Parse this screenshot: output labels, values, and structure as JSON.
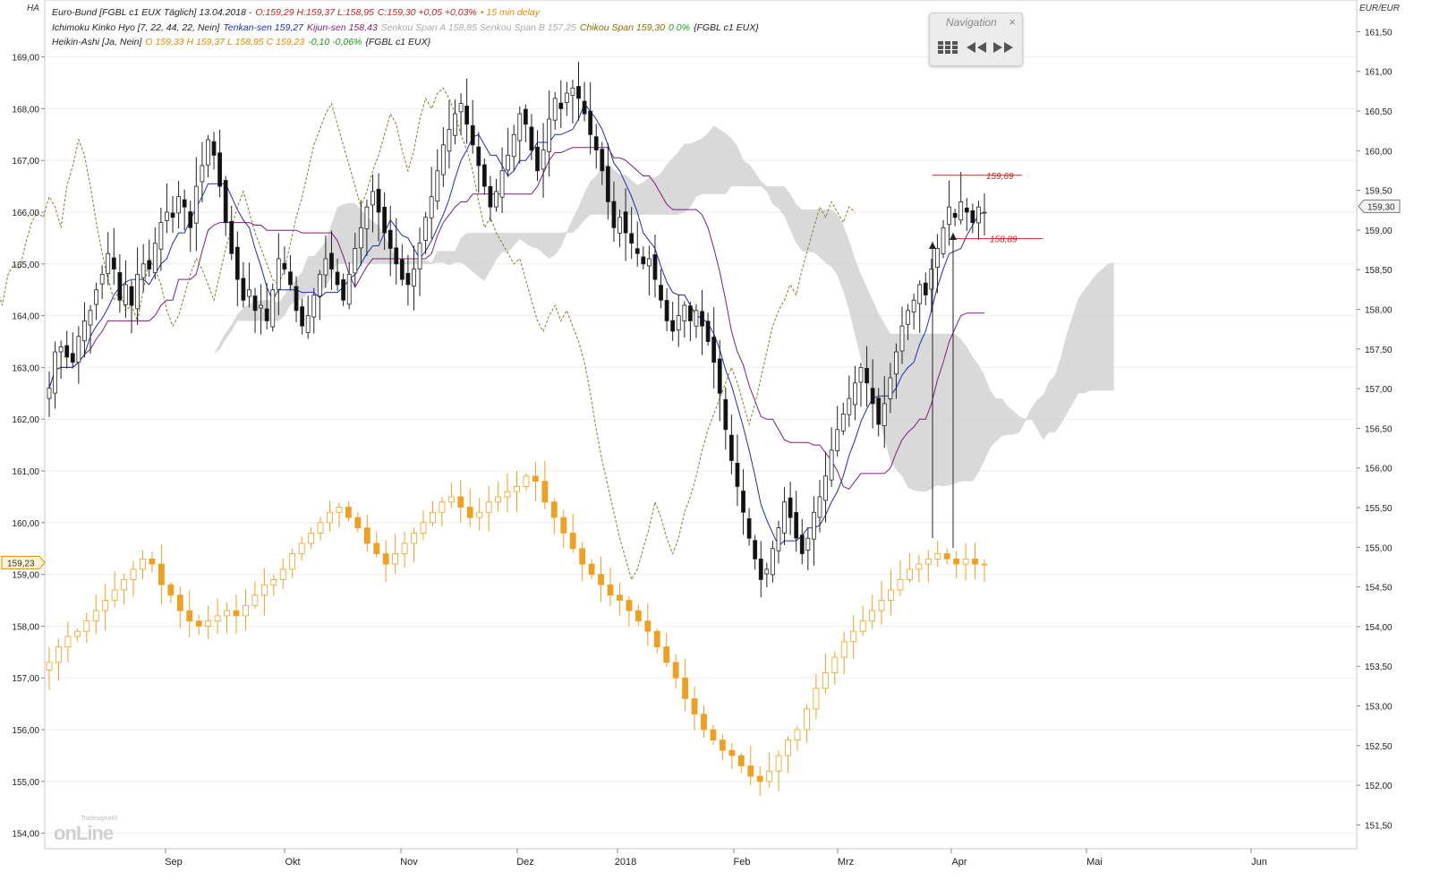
{
  "chart_data": {
    "type": "candlestick",
    "corner_label": "HA",
    "currency_label": "EUR/EUR",
    "legend": {
      "line1": {
        "prefix": "Euro-Bund [FGBL c1 EUX Täglich] 13.04.2018 -",
        "ohlc": "O:159,29 H:159,37 L:158,95",
        "change": "C:159,30 +0,05 +0,03%",
        "delay": "• 15 min delay"
      },
      "line2": {
        "prefix": "Ichimoku Kinko Hyo [7, 22, 44, 22, Nein]",
        "tenkan": "Tenkan-sen 159,27",
        "kijun": "Kijun-sen 158,43",
        "senkou": "Senkou Span A 158,85 Senkou Span B 157,25",
        "chikou": "Chikou Span 159,30",
        "chikou_change": "0 0%",
        "suffix": "{FGBL c1 EUX}"
      },
      "line3": {
        "prefix": "Heikin-Ashi [Ja, Nein]",
        "values": "O 159,33 H 159,37 L 158,95 C 159,23",
        "change": "-0,10 -0,06%",
        "suffix": "{FGBL c1 EUX}"
      }
    },
    "x_tick_labels": [
      "Sep",
      "Okt",
      "Nov",
      "Dez",
      "2018",
      "Feb",
      "Mrz",
      "Apr",
      "Mai",
      "Jun"
    ],
    "left_axis": {
      "ticks": [
        "154,00",
        "155,00",
        "156,00",
        "157,00",
        "158,00",
        "159,00",
        "160,00",
        "161,00",
        "162,00",
        "163,00",
        "164,00",
        "165,00",
        "166,00",
        "167,00",
        "168,00",
        "169,00"
      ],
      "range": [
        153.7,
        170.1
      ]
    },
    "right_axis": {
      "ticks": [
        "151,50",
        "152,00",
        "152,50",
        "153,00",
        "153,50",
        "154,00",
        "154,50",
        "155,00",
        "155,50",
        "156,00",
        "156,50",
        "157,00",
        "157,50",
        "158,00",
        "158,50",
        "159,00",
        "159,50",
        "160,00",
        "160,50",
        "161,00",
        "161,50"
      ],
      "range": [
        151.2,
        161.9
      ]
    },
    "last_price_labels": {
      "left": "159,23",
      "right": "159,30"
    },
    "annotations": [
      {
        "label": "159,69",
        "value": 159.69,
        "color": "#cc2222"
      },
      {
        "label": "158,89",
        "value": 158.89,
        "color": "#cc2222"
      }
    ],
    "heikin_ashi_range": {
      "low": 154.65,
      "high": 160.65,
      "last": 159.23
    },
    "ohlc_close": [
      162.6,
      163.3,
      163.4,
      163.2,
      163.1,
      163.6,
      163.9,
      164.1,
      164.5,
      164.8,
      165.2,
      164.9,
      164.3,
      164.6,
      164.2,
      164.8,
      165.0,
      164.9,
      165.4,
      165.8,
      166.0,
      165.9,
      166.3,
      166.1,
      165.7,
      166.5,
      166.9,
      167.4,
      167.1,
      166.5,
      165.8,
      165.2,
      164.7,
      164.3,
      164.5,
      164.1,
      164.2,
      163.9,
      164.5,
      165.1,
      164.9,
      164.6,
      164.1,
      163.8,
      164.0,
      164.4,
      164.8,
      165.1,
      164.9,
      164.6,
      164.3,
      164.8,
      165.3,
      165.7,
      166.1,
      166.4,
      166.0,
      165.6,
      165.3,
      165.0,
      164.7,
      164.6,
      164.9,
      165.4,
      165.9,
      166.3,
      166.8,
      167.3,
      167.6,
      167.9,
      168.1,
      167.7,
      167.3,
      166.9,
      166.5,
      166.1,
      166.4,
      166.8,
      167.1,
      167.5,
      167.9,
      167.7,
      167.2,
      166.8,
      167.2,
      167.8,
      168.2,
      168.0,
      168.3,
      168.4,
      168.2,
      167.9,
      167.5,
      167.2,
      166.8,
      166.2,
      165.7,
      165.9,
      165.6,
      165.4,
      165.2,
      165.0,
      165.1,
      164.7,
      164.3,
      163.9,
      163.7,
      164.0,
      164.2,
      163.9,
      164.1,
      163.8,
      163.5,
      163.1,
      162.5,
      161.8,
      161.2,
      160.7,
      160.2,
      159.7,
      159.3,
      158.9,
      159.1,
      159.5,
      159.9,
      160.4,
      160.1,
      159.7,
      159.4,
      159.7,
      160.2,
      160.5,
      160.9,
      161.4,
      161.8,
      162.1,
      162.4,
      162.7,
      163.0,
      162.7,
      162.3,
      161.9,
      162.3,
      162.8,
      163.3,
      163.8,
      164.1,
      164.3,
      164.6,
      164.4,
      164.9,
      165.3,
      165.7,
      166.1,
      165.9,
      166.2,
      166.0,
      165.8,
      166.1,
      166.0
    ],
    "heikin_ashi_close": [
      157.3,
      157.6,
      157.8,
      157.9,
      158.1,
      158.3,
      158.5,
      158.7,
      158.9,
      159.1,
      159.3,
      159.2,
      158.8,
      158.6,
      158.3,
      158.1,
      158.0,
      158.1,
      158.2,
      158.3,
      158.2,
      158.4,
      158.6,
      158.8,
      158.9,
      159.1,
      159.4,
      159.6,
      159.8,
      160.0,
      160.2,
      160.3,
      160.1,
      159.9,
      159.6,
      159.4,
      159.2,
      159.4,
      159.6,
      159.8,
      160.0,
      160.2,
      160.4,
      160.5,
      160.3,
      160.1,
      160.2,
      160.4,
      160.5,
      160.6,
      160.7,
      160.9,
      160.8,
      160.4,
      160.1,
      159.8,
      159.5,
      159.2,
      159.0,
      158.8,
      158.6,
      158.5,
      158.3,
      158.1,
      157.9,
      157.6,
      157.3,
      157.0,
      156.6,
      156.3,
      156.0,
      155.8,
      155.6,
      155.5,
      155.3,
      155.1,
      155.0,
      155.2,
      155.5,
      155.8,
      156.0,
      156.4,
      156.8,
      157.1,
      157.4,
      157.7,
      157.9,
      158.1,
      158.3,
      158.5,
      158.7,
      158.9,
      159.1,
      159.2,
      159.3,
      159.4,
      159.3,
      159.2,
      159.3,
      159.2,
      159.2
    ],
    "ichimoku": {
      "tenkan_color": "#1a2fb0",
      "kijun_color": "#7a1f7a",
      "chikou_color": "#8a7a2a",
      "cloud_color": "#cfcfcf",
      "heikin_color": "#f0a020"
    }
  },
  "navigation": {
    "title": "Navigation",
    "close": "×"
  },
  "logo": {
    "small": "Tradesignal®",
    "main": "onLine"
  }
}
